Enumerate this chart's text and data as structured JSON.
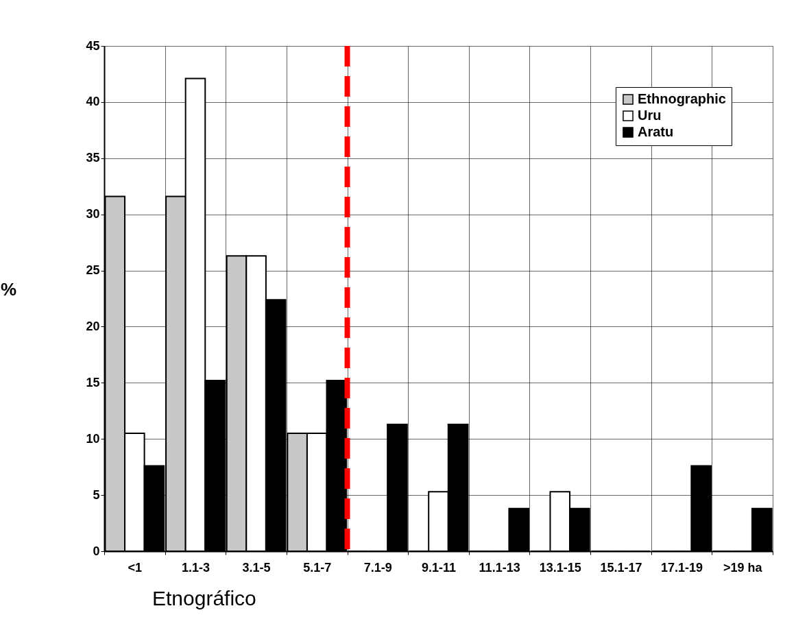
{
  "chart_data": {
    "type": "bar",
    "ylabel": "%",
    "categories": [
      "<1",
      "1.1-3",
      "3.1-5",
      "5.1-7",
      "7.1-9",
      "9.1-11",
      "11.1-13",
      "13.1-15",
      "15.1-17",
      "17.1-19",
      ">19 ha"
    ],
    "series": [
      {
        "name": "Ethnographic",
        "color": "#c8c8c8",
        "values": [
          31.6,
          31.6,
          26.3,
          10.5,
          0,
          0,
          0,
          0,
          0,
          0,
          0
        ]
      },
      {
        "name": "Uru",
        "color": "#ffffff",
        "values": [
          10.5,
          42.1,
          26.3,
          10.5,
          0,
          5.3,
          0,
          5.3,
          0,
          0,
          0
        ]
      },
      {
        "name": "Aratu",
        "color": "#000000",
        "values": [
          7.6,
          15.2,
          22.4,
          15.2,
          11.3,
          11.3,
          3.8,
          3.8,
          0,
          7.6,
          3.8
        ]
      }
    ],
    "ylim": [
      0,
      45
    ],
    "yticks": [
      0,
      5,
      10,
      15,
      20,
      25,
      30,
      35,
      40,
      45
    ],
    "grid": true,
    "legend": "top right",
    "ref_lines": [
      {
        "axis": "x",
        "value": "7.1-9",
        "color": "#ff0000",
        "line_style": "dashed"
      }
    ],
    "annotations": [
      "Etnográfico"
    ]
  }
}
